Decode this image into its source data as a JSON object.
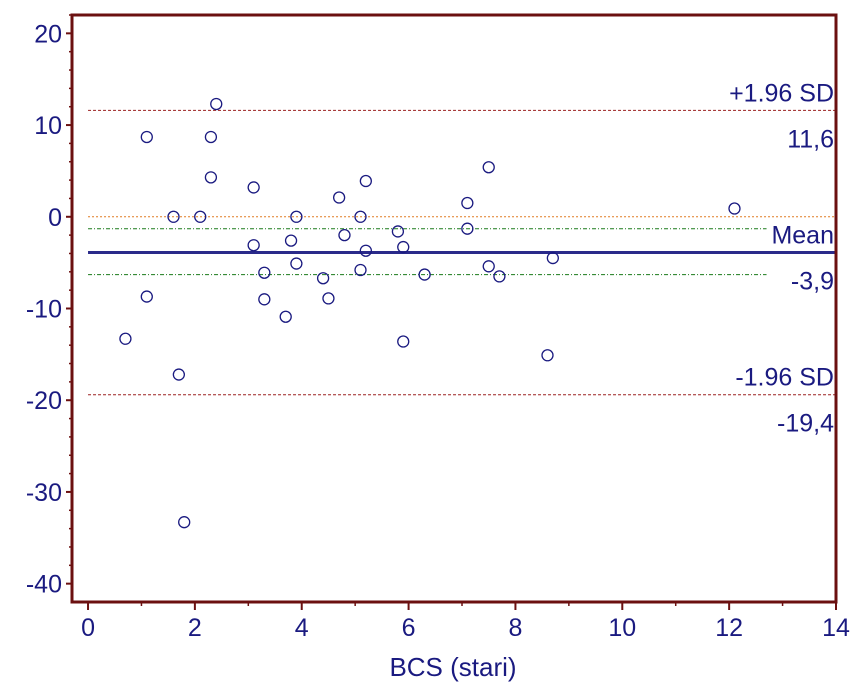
{
  "chart_data": {
    "type": "scatter",
    "xlabel": "BCS (stari)",
    "ylabel": "",
    "xlim": [
      -0.3,
      14
    ],
    "ylim": [
      -42,
      22
    ],
    "xticks": [
      0,
      2,
      4,
      6,
      8,
      10,
      12,
      14
    ],
    "yticks": [
      -40,
      -30,
      -20,
      -10,
      0,
      10,
      20
    ],
    "grid": false,
    "colors": {
      "axis": "#6b1010",
      "points": "#1a1a80",
      "text": "#1a1a80",
      "mean_line": "#2a2a8a",
      "sd_lines": "#9b2020",
      "zero_line": "#e07a20",
      "ci_lines": "#1a7a1a"
    },
    "reference_lines": {
      "upper_sd": {
        "label": "+1.96 SD",
        "value_label": "11,6",
        "value": 11.6
      },
      "mean": {
        "label": "Mean",
        "value_label": "-3,9",
        "value": -3.9
      },
      "lower_sd": {
        "label": "-1.96 SD",
        "value_label": "-19,4",
        "value": -19.4
      },
      "zero": {
        "value": 0
      },
      "mean_ci": [
        -1.3,
        -6.3
      ]
    },
    "points": [
      {
        "x": 0.7,
        "y": -13.3
      },
      {
        "x": 1.1,
        "y": 8.7
      },
      {
        "x": 1.1,
        "y": -8.7
      },
      {
        "x": 1.6,
        "y": 0.0
      },
      {
        "x": 1.7,
        "y": -17.2
      },
      {
        "x": 1.8,
        "y": -33.3
      },
      {
        "x": 2.1,
        "y": 0.0
      },
      {
        "x": 2.3,
        "y": 8.7
      },
      {
        "x": 2.3,
        "y": 4.3
      },
      {
        "x": 2.4,
        "y": 12.3
      },
      {
        "x": 3.1,
        "y": 3.2
      },
      {
        "x": 3.1,
        "y": -3.1
      },
      {
        "x": 3.3,
        "y": -6.1
      },
      {
        "x": 3.3,
        "y": -9.0
      },
      {
        "x": 3.7,
        "y": -10.9
      },
      {
        "x": 3.8,
        "y": -2.6
      },
      {
        "x": 3.9,
        "y": 0.0
      },
      {
        "x": 3.9,
        "y": -5.1
      },
      {
        "x": 4.4,
        "y": -6.7
      },
      {
        "x": 4.5,
        "y": -8.9
      },
      {
        "x": 4.7,
        "y": 2.1
      },
      {
        "x": 4.8,
        "y": -2.0
      },
      {
        "x": 5.1,
        "y": 0.0
      },
      {
        "x": 5.1,
        "y": -5.8
      },
      {
        "x": 5.2,
        "y": 3.9
      },
      {
        "x": 5.2,
        "y": -3.7
      },
      {
        "x": 5.8,
        "y": -1.6
      },
      {
        "x": 5.9,
        "y": -3.3
      },
      {
        "x": 5.9,
        "y": -13.6
      },
      {
        "x": 6.3,
        "y": -6.3
      },
      {
        "x": 7.1,
        "y": 1.5
      },
      {
        "x": 7.1,
        "y": -1.3
      },
      {
        "x": 7.5,
        "y": 5.4
      },
      {
        "x": 7.5,
        "y": -5.4
      },
      {
        "x": 7.7,
        "y": -6.5
      },
      {
        "x": 8.7,
        "y": -4.5
      },
      {
        "x": 8.6,
        "y": -15.1
      },
      {
        "x": 12.1,
        "y": 0.9
      }
    ]
  }
}
